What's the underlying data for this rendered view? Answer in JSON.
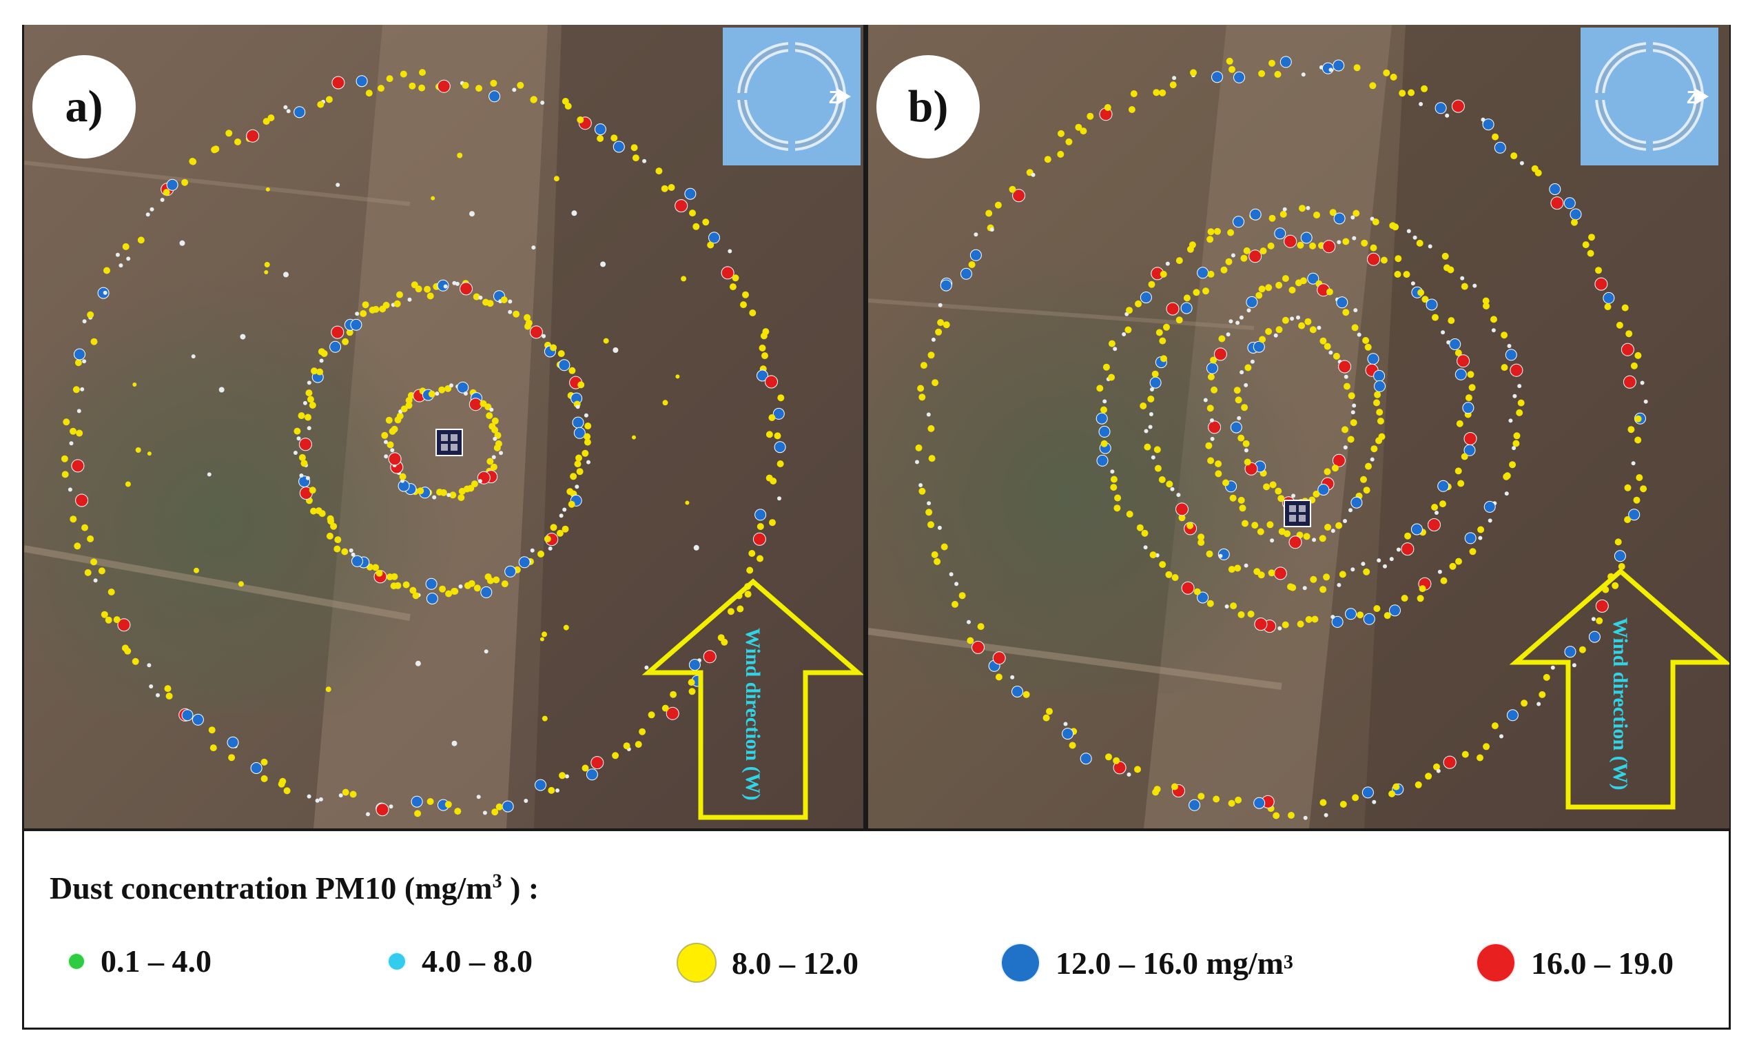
{
  "panels": [
    {
      "id": "a",
      "label": "a)",
      "wind_label": "Wind direction (W)"
    },
    {
      "id": "b",
      "label": "b)",
      "wind_label": "Wind direction (W)"
    }
  ],
  "compass_glyph": "Z",
  "legend": {
    "title_text": "Dust concentration PM10 (mg/m",
    "title_sup": "3",
    "title_end": " ) :",
    "items": [
      {
        "label": "0.1 – 4.0",
        "color": "#2ecc40",
        "size": "small"
      },
      {
        "label": "4.0 – 8.0",
        "color": "#33ccee",
        "size": "small"
      },
      {
        "label": "8.0 – 12.0",
        "color": "#ffee00",
        "size": "large"
      },
      {
        "label": "12.0 – 16.0 mg/m",
        "sup": "3",
        "color": "#1f72c8",
        "size": "large"
      },
      {
        "label": "16.0 – 19.0",
        "color": "#e82020",
        "size": "large"
      }
    ]
  },
  "colors": {
    "yellow": "#f5e300",
    "blue": "#1f6fd0",
    "red": "#e01b1b",
    "white": "#e6eef2",
    "arrow": "#f3ef00"
  }
}
